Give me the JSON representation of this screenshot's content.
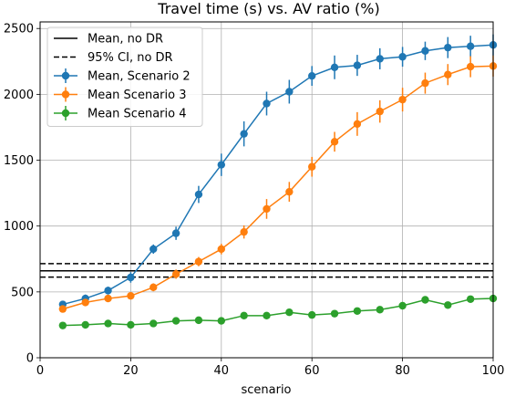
{
  "chart_data": {
    "type": "line",
    "title": "Travel time (s) vs. AV ratio (%)",
    "xlabel": "scenario",
    "ylabel": "",
    "xlim": [
      0,
      100
    ],
    "ylim": [
      0,
      2550
    ],
    "xticks": [
      0,
      20,
      40,
      60,
      80,
      100
    ],
    "yticks": [
      0,
      500,
      1000,
      1500,
      2000,
      2500
    ],
    "grid": true,
    "legend_position": "upper-left",
    "reference_lines": [
      {
        "name": "Mean, no DR",
        "y": 660,
        "style": "solid",
        "color": "#000000"
      },
      {
        "name": "95% CI, no DR",
        "y": [
          612,
          715
        ],
        "style": "dashed",
        "color": "#000000"
      }
    ],
    "x": [
      5,
      10,
      15,
      20,
      25,
      30,
      35,
      40,
      45,
      50,
      55,
      60,
      65,
      70,
      75,
      80,
      85,
      90,
      95,
      100
    ],
    "series": [
      {
        "name": "Mean, Scenario 2",
        "color": "#1f77b4",
        "values": [
          405,
          450,
          510,
          610,
          825,
          945,
          1240,
          1465,
          1700,
          1930,
          2020,
          2140,
          2205,
          2220,
          2270,
          2285,
          2330,
          2355,
          2365,
          2375
        ],
        "errors": [
          25,
          30,
          30,
          40,
          35,
          50,
          65,
          85,
          95,
          90,
          90,
          75,
          90,
          80,
          80,
          75,
          70,
          80,
          80,
          80
        ]
      },
      {
        "name": "Mean Scenario 3",
        "color": "#ff7f0e",
        "values": [
          370,
          420,
          450,
          470,
          535,
          635,
          730,
          825,
          955,
          1130,
          1260,
          1450,
          1640,
          1775,
          1870,
          1960,
          2085,
          2150,
          2210,
          2215
        ],
        "errors": [
          20,
          25,
          25,
          25,
          30,
          35,
          35,
          40,
          50,
          75,
          75,
          75,
          75,
          90,
          85,
          90,
          80,
          80,
          80,
          80
        ]
      },
      {
        "name": "Mean Scenario 4",
        "color": "#2ca02c",
        "values": [
          245,
          250,
          260,
          250,
          260,
          280,
          285,
          280,
          320,
          320,
          345,
          325,
          335,
          355,
          365,
          395,
          440,
          400,
          445,
          450
        ],
        "errors": [
          15,
          15,
          15,
          15,
          15,
          15,
          15,
          15,
          20,
          20,
          20,
          20,
          20,
          20,
          20,
          20,
          20,
          20,
          20,
          20
        ]
      }
    ]
  }
}
